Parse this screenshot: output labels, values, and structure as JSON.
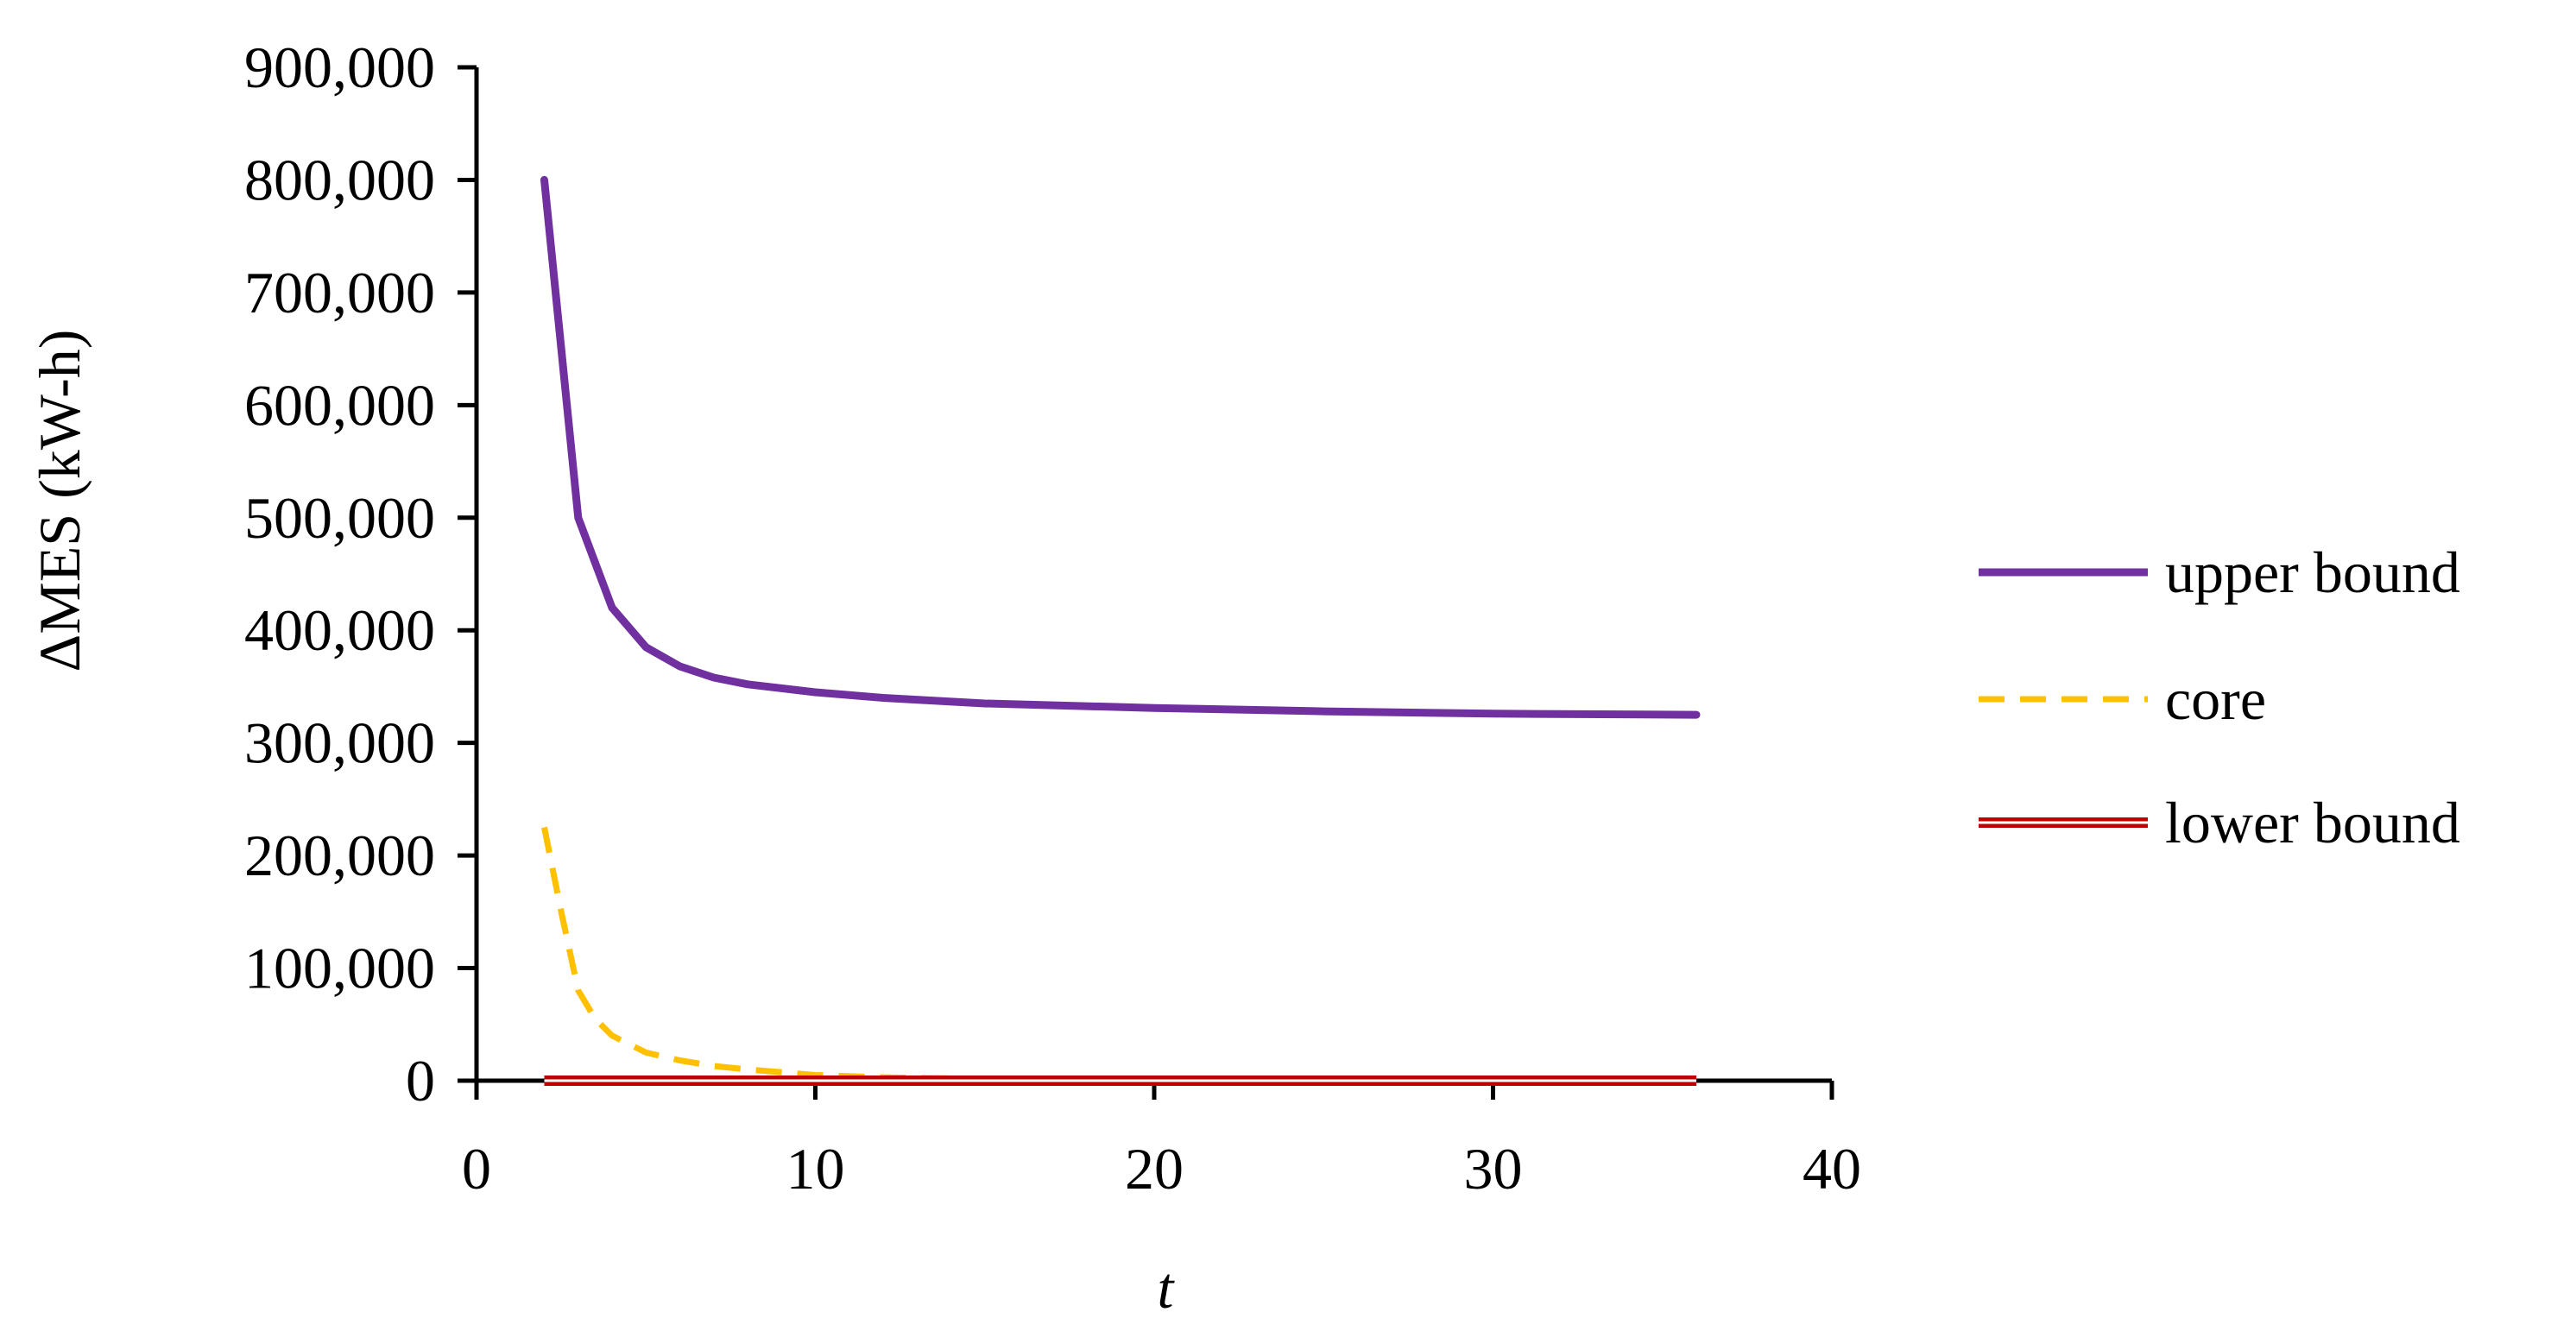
{
  "chart_data": {
    "type": "line",
    "title": "",
    "xlabel": "t",
    "ylabel": "ΔMES (kW-h)",
    "xlim": [
      0,
      40
    ],
    "ylim": [
      0,
      900000
    ],
    "xticks": [
      0,
      10,
      20,
      30,
      40
    ],
    "yticks": [
      0,
      100000,
      200000,
      300000,
      400000,
      500000,
      600000,
      700000,
      800000,
      900000
    ],
    "xtick_labels": [
      "0",
      "10",
      "20",
      "30",
      "40"
    ],
    "ytick_labels": [
      "0",
      "100,000",
      "200,000",
      "300,000",
      "400,000",
      "500,000",
      "600,000",
      "700,000",
      "800,000",
      "900,000"
    ],
    "grid": false,
    "legend_position": "right",
    "series": [
      {
        "name": "upper bound",
        "color": "#7030A0",
        "style": "solid",
        "x": [
          2,
          3,
          4,
          5,
          6,
          7,
          8,
          10,
          12,
          15,
          20,
          25,
          30,
          36
        ],
        "y": [
          800000,
          500000,
          420000,
          385000,
          368000,
          358000,
          352000,
          345000,
          340000,
          335000,
          331000,
          328000,
          326000,
          325000
        ]
      },
      {
        "name": "core",
        "color": "#FFC000",
        "style": "dashed",
        "x": [
          2,
          2.5,
          3,
          3.5,
          4,
          5,
          6,
          7,
          8,
          10,
          12,
          15,
          20,
          36
        ],
        "y": [
          225000,
          150000,
          80000,
          55000,
          40000,
          25000,
          18000,
          13000,
          10000,
          5000,
          3000,
          1500,
          500,
          0
        ]
      },
      {
        "name": "lower bound",
        "color": "#C00000",
        "style": "double",
        "x": [
          2,
          36
        ],
        "y": [
          0,
          0
        ]
      }
    ]
  }
}
